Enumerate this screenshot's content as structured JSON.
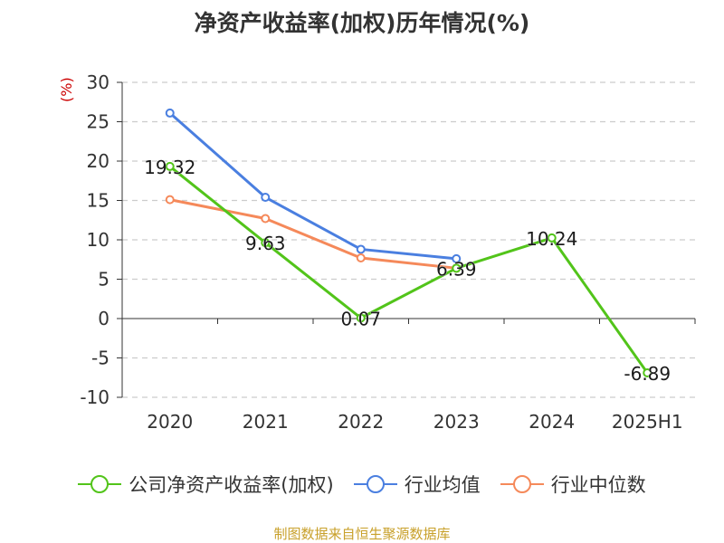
{
  "chart_data": {
    "type": "line",
    "title": "净资产收益率(加权)历年情况(%)",
    "ylabel": "(%)",
    "xlabel": "",
    "categories": [
      "2020",
      "2021",
      "2022",
      "2023",
      "2024",
      "2025H1"
    ],
    "ylim": [
      -10,
      30
    ],
    "yticks": [
      30,
      25,
      20,
      15,
      10,
      5,
      0,
      -5,
      -10
    ],
    "grid": true,
    "legend_position": "bottom",
    "series": [
      {
        "name": "公司净资产收益率(加权)",
        "color": "#52c41a",
        "values": [
          19.32,
          9.63,
          0.07,
          6.39,
          10.24,
          -6.89
        ],
        "labels": [
          "19.32",
          "9.63",
          "0.07",
          "6.39",
          "10.24",
          "-6.89"
        ]
      },
      {
        "name": "行业均值",
        "color": "#4a7fe0",
        "values": [
          26.1,
          15.4,
          8.8,
          7.6,
          null,
          null
        ],
        "labels": []
      },
      {
        "name": "行业中位数",
        "color": "#f5895a",
        "values": [
          15.1,
          12.7,
          7.7,
          6.4,
          null,
          null
        ],
        "labels": []
      }
    ]
  },
  "source": "制图数据来自恒生聚源数据库"
}
